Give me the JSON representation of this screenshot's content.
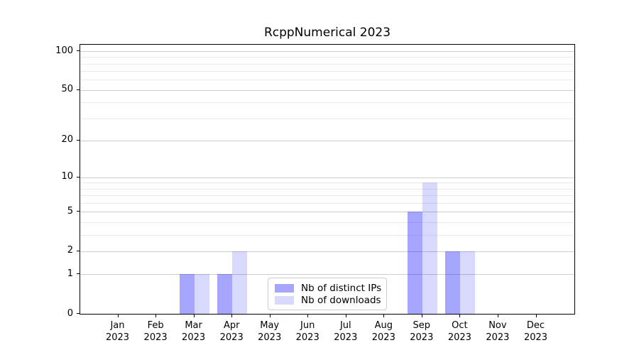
{
  "chart_data": {
    "type": "bar",
    "title": "RcppNumerical 2023",
    "categories": [
      "Jan",
      "Feb",
      "Mar",
      "Apr",
      "May",
      "Jun",
      "Jul",
      "Aug",
      "Sep",
      "Oct",
      "Nov",
      "Dec"
    ],
    "category_year": "2023",
    "series": [
      {
        "name": "Nb of distinct IPs",
        "color": "#0000ff",
        "alpha": 0.35,
        "blended_hex": "#a6a6ff",
        "values": [
          0,
          0,
          1,
          1,
          0,
          0,
          0,
          0,
          5,
          2,
          0,
          0
        ]
      },
      {
        "name": "Nb of downloads",
        "color": "#0000ff",
        "alpha": 0.15,
        "blended_hex": "#d9d9ff",
        "values": [
          0,
          0,
          1,
          2,
          0,
          0,
          0,
          0,
          9,
          2,
          0,
          0
        ]
      }
    ],
    "yscale": "log1p",
    "ylim": [
      0,
      112
    ],
    "yticks": [
      0,
      1,
      2,
      5,
      10,
      20,
      50,
      100
    ],
    "minor_gridlines": [
      3,
      4,
      6,
      7,
      8,
      9,
      30,
      40,
      60,
      70,
      80,
      90
    ],
    "grid": "horizontal",
    "legend_position": "lower center",
    "colors": {
      "major_grid": "#cccccc",
      "minor_grid": "#ebebeb",
      "axis": "#000000",
      "legend_border": "#cccccc",
      "background": "#ffffff"
    }
  }
}
